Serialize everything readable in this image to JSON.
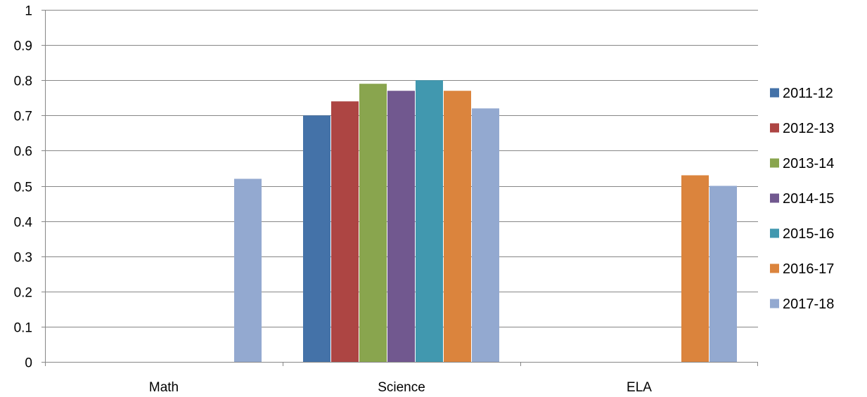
{
  "chart_data": {
    "type": "bar",
    "categories": [
      "Math",
      "Science",
      "ELA"
    ],
    "series": [
      {
        "name": "2011-12",
        "color": "#4472A8",
        "values": [
          0,
          0.7,
          0
        ]
      },
      {
        "name": "2012-13",
        "color": "#AD4543",
        "values": [
          0,
          0.74,
          0
        ]
      },
      {
        "name": "2013-14",
        "color": "#89A54E",
        "values": [
          0,
          0.79,
          0
        ]
      },
      {
        "name": "2014-15",
        "color": "#71588F",
        "values": [
          0,
          0.77,
          0
        ]
      },
      {
        "name": "2015-16",
        "color": "#4198AF",
        "values": [
          0,
          0.8,
          0
        ]
      },
      {
        "name": "2016-17",
        "color": "#DB843D",
        "values": [
          0,
          0.77,
          0.53
        ]
      },
      {
        "name": "2017-18",
        "color": "#93A9D0",
        "values": [
          0.52,
          0.72,
          0.5
        ]
      }
    ],
    "yticks": [
      "0",
      "0.1",
      "0.2",
      "0.3",
      "0.4",
      "0.5",
      "0.6",
      "0.7",
      "0.8",
      "0.9",
      "1"
    ],
    "ylim": [
      0,
      1
    ],
    "grid": true,
    "legend": "right"
  }
}
